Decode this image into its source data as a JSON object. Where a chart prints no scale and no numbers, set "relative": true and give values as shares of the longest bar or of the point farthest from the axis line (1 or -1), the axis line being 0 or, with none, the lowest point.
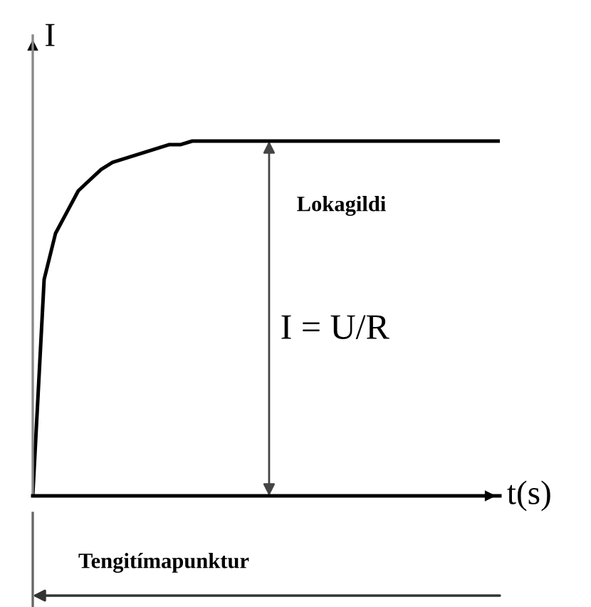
{
  "chart_data": {
    "type": "line",
    "relative": true,
    "xlabel": "t(s)",
    "ylabel": "I",
    "color": "#000000",
    "categories": [
      null,
      null,
      null,
      null,
      null,
      null,
      null,
      null,
      null,
      null,
      null,
      null,
      null,
      null,
      null,
      null,
      null,
      null,
      null,
      null,
      null,
      null,
      null,
      null,
      null,
      null,
      null,
      null,
      null,
      null,
      null,
      null,
      null,
      null,
      null,
      null,
      null,
      null,
      null,
      null,
      null,
      null
    ],
    "values": [
      0,
      0.61,
      0.74,
      0.8,
      0.86,
      0.89,
      0.92,
      0.94,
      0.95,
      0.96,
      0.97,
      0.98,
      0.99,
      0.99,
      1,
      1,
      1,
      1,
      1,
      1,
      1,
      1,
      1,
      1,
      1,
      1,
      1,
      1,
      1,
      1,
      1,
      1,
      1,
      1,
      1,
      1,
      1,
      1,
      1,
      1,
      1,
      1
    ],
    "annotations": [
      "Lokagildi",
      "I = U/R",
      "Tengitímapunktur"
    ],
    "grid": false,
    "legend": false,
    "marker": "none",
    "line_style": "solid"
  }
}
